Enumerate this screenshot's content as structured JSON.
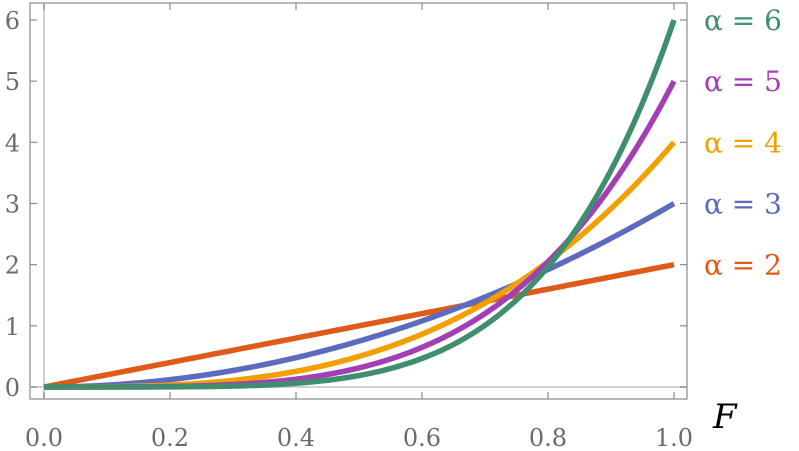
{
  "chart_data": {
    "type": "line",
    "xlabel": "F",
    "ylabel": "",
    "xlim": [
      0.0,
      1.0
    ],
    "ylim": [
      0,
      6
    ],
    "x_ticks": [
      "0.0",
      "0.2",
      "0.4",
      "0.6",
      "0.8",
      "1.0"
    ],
    "y_ticks": [
      "0",
      "1",
      "2",
      "3",
      "4",
      "5",
      "6"
    ],
    "legend_position": "right",
    "series": [
      {
        "name": "α = 6",
        "alpha": 6,
        "color": "#3f8f6f"
      },
      {
        "name": "α = 5",
        "alpha": 5,
        "color": "#a33fb4"
      },
      {
        "name": "α = 4",
        "alpha": 4,
        "color": "#f0a000"
      },
      {
        "name": "α = 3",
        "alpha": 3,
        "color": "#5b6cbf"
      },
      {
        "name": "α = 2",
        "alpha": 2,
        "color": "#e05a1a"
      }
    ],
    "function": "y = α·F^(α−1)"
  }
}
